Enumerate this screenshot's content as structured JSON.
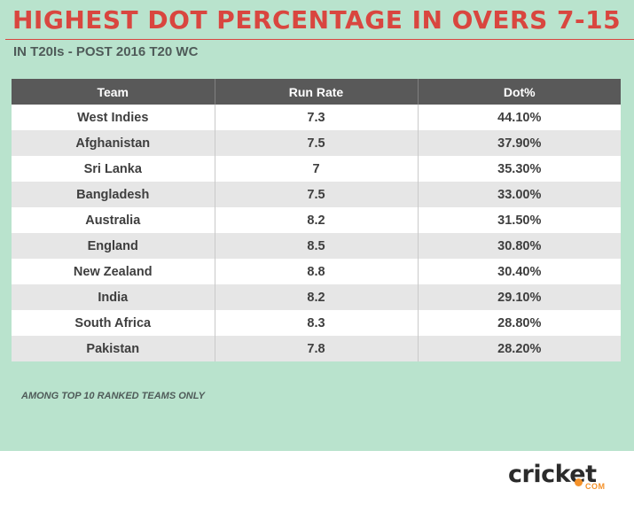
{
  "title": "HIGHEST DOT PERCENTAGE IN OVERS 7-15",
  "subtitle": "IN T20Is - POST 2016 T20 WC",
  "footnote": "AMONG TOP 10 RANKED TEAMS ONLY",
  "logo": {
    "word": "cricket",
    "suffix": "COM"
  },
  "colors": {
    "background": "#b9e3cd",
    "title": "#d9463f",
    "header": "#595959",
    "logo_accent": "#f5922a"
  },
  "chart_data": {
    "type": "table",
    "columns": [
      "Team",
      "Run Rate",
      "Dot%"
    ],
    "rows": [
      [
        "West Indies",
        "7.3",
        "44.10%"
      ],
      [
        "Afghanistan",
        "7.5",
        "37.90%"
      ],
      [
        "Sri Lanka",
        "7",
        "35.30%"
      ],
      [
        "Bangladesh",
        "7.5",
        "33.00%"
      ],
      [
        "Australia",
        "8.2",
        "31.50%"
      ],
      [
        "England",
        "8.5",
        "30.80%"
      ],
      [
        "New Zealand",
        "8.8",
        "30.40%"
      ],
      [
        "India",
        "8.2",
        "29.10%"
      ],
      [
        "South Africa",
        "8.3",
        "28.80%"
      ],
      [
        "Pakistan",
        "7.8",
        "28.20%"
      ]
    ]
  }
}
